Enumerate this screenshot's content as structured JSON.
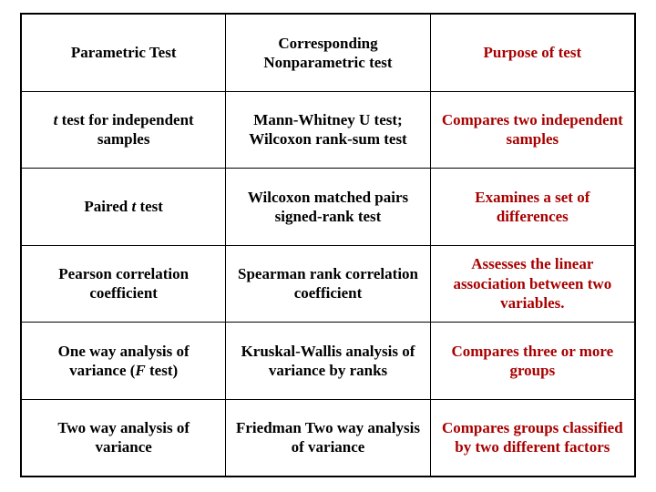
{
  "table": {
    "type": "table",
    "columns": 3,
    "rows": 6,
    "border_color": "#000000",
    "background_color": "#ffffff",
    "font_family": "Times New Roman",
    "header_color": "#000000",
    "purpose_color": "#a80000",
    "font_weight": "bold",
    "font_size_pt": 13,
    "headers": {
      "c0": "Parametric Test",
      "c1": "Corresponding Nonparametric test",
      "c2": "Purpose of test"
    },
    "body": [
      {
        "c0_pre": "",
        "c0_ital": "t",
        "c0_post": " test for independent samples",
        "c1": "Mann-Whitney U test; Wilcoxon rank-sum test",
        "c2": "Compares two independent samples"
      },
      {
        "c0_pre": "Paired ",
        "c0_ital": "t",
        "c0_post": " test",
        "c1": "Wilcoxon matched pairs signed-rank test",
        "c2": "Examines a set of differences"
      },
      {
        "c0_pre": "Pearson correlation coefficient",
        "c0_ital": "",
        "c0_post": "",
        "c1": "Spearman rank correlation coefficient",
        "c2": "Assesses the linear association between two variables."
      },
      {
        "c0_pre": "One way analysis of variance (",
        "c0_ital": "F",
        "c0_post": " test)",
        "c1": "Kruskal-Wallis analysis of variance by ranks",
        "c2": "Compares three or more groups"
      },
      {
        "c0_pre": "Two way analysis of variance",
        "c0_ital": "",
        "c0_post": "",
        "c1": "Friedman Two way analysis of variance",
        "c2": "Compares groups classified by two different factors"
      }
    ]
  }
}
